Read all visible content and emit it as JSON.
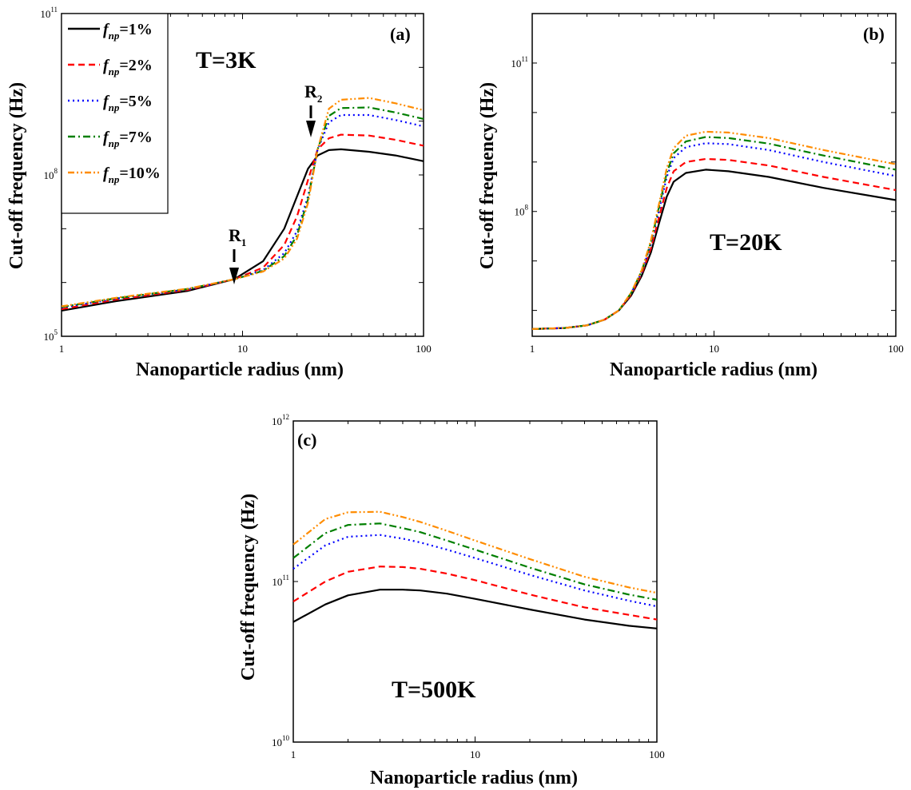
{
  "colors": {
    "fnp_1": "#000000",
    "fnp_2": "#ff0000",
    "fnp_5": "#0000ff",
    "fnp_7": "#007f00",
    "fnp_10": "#ff8c00"
  },
  "legend": {
    "entries": [
      {
        "italic": "f",
        "sub": "np",
        "text": "=1%"
      },
      {
        "italic": "f",
        "sub": "np",
        "text": "=2%"
      },
      {
        "italic": "f",
        "sub": "np",
        "text": "=5%"
      },
      {
        "italic": "f",
        "sub": "np",
        "text": "=7%"
      },
      {
        "italic": "f",
        "sub": "np",
        "text": "=10%"
      }
    ]
  },
  "chart_data": [
    {
      "type": "line",
      "panel": "(a)",
      "annotation": "T=3K",
      "xlabel": "Nanoparticle radius (nm)",
      "ylabel": "Cut-off frequency (Hz)",
      "x_scale": "log",
      "y_scale": "log",
      "xlim": [
        1,
        100
      ],
      "ylim": [
        100000,
        100000000000
      ],
      "x_ticks": [
        {
          "value": 1,
          "label": "1"
        },
        {
          "value": 10,
          "label": "10"
        },
        {
          "value": 100,
          "label": "100"
        }
      ],
      "y_ticks": [
        {
          "value": 100000,
          "base": "10",
          "exp": "5"
        },
        {
          "value": 100000000,
          "base": "10",
          "exp": "8"
        },
        {
          "value": 100000000000,
          "base": "10",
          "exp": "11"
        }
      ],
      "markers": [
        {
          "label": "R",
          "sub": "1",
          "x": 9.2,
          "y": 1200000
        },
        {
          "label": "R",
          "sub": "2",
          "x": 25,
          "y": 700000000
        }
      ],
      "legend_position": "top-left",
      "series": [
        {
          "key": "fnp_1",
          "x": [
            1,
            2,
            5,
            9,
            13,
            17,
            20,
            23,
            26,
            30,
            35,
            50,
            70,
            100
          ],
          "y": [
            300000,
            450000,
            700000,
            1150000,
            2500000,
            10000000,
            40000000,
            130000000,
            230000000,
            290000000,
            300000000,
            270000000,
            230000000,
            180000000
          ]
        },
        {
          "key": "fnp_2",
          "x": [
            1,
            2,
            5,
            9,
            13,
            17,
            20,
            23,
            26,
            30,
            35,
            50,
            70,
            100
          ],
          "y": [
            320000,
            480000,
            730000,
            1150000,
            1900000,
            5000000,
            17000000,
            80000000,
            300000000,
            480000000,
            560000000,
            540000000,
            450000000,
            350000000
          ]
        },
        {
          "key": "fnp_5",
          "x": [
            1,
            2,
            5,
            9,
            13,
            17,
            20,
            23,
            26,
            30,
            35,
            50,
            70,
            100
          ],
          "y": [
            340000,
            500000,
            750000,
            1150000,
            1700000,
            3500000,
            9000000,
            40000000,
            300000000,
            950000000,
            1300000000,
            1300000000,
            1050000000,
            800000000
          ]
        },
        {
          "key": "fnp_7",
          "x": [
            1,
            2,
            5,
            9,
            13,
            17,
            20,
            23,
            26,
            30,
            35,
            50,
            70,
            100
          ],
          "y": [
            350000,
            510000,
            760000,
            1150000,
            1650000,
            3100000,
            7500000,
            35000000,
            300000000,
            1250000000,
            1750000000,
            1800000000,
            1450000000,
            1100000000
          ]
        },
        {
          "key": "fnp_10",
          "x": [
            1,
            2,
            5,
            9,
            13,
            17,
            20,
            23,
            26,
            30,
            35,
            50,
            70,
            100
          ],
          "y": [
            360000,
            520000,
            770000,
            1150000,
            1600000,
            2800000,
            6500000,
            30000000,
            300000000,
            1700000000,
            2500000000,
            2700000000,
            2150000000,
            1600000000
          ]
        }
      ]
    },
    {
      "type": "line",
      "panel": "(b)",
      "annotation": "T=20K",
      "xlabel": "Nanoparticle radius (nm)",
      "ylabel": "Cut-off frequency (Hz)",
      "x_scale": "log",
      "y_scale": "log",
      "xlim": [
        1,
        100
      ],
      "ylim": [
        300000,
        1000000000000
      ],
      "x_ticks": [
        {
          "value": 1,
          "label": "1"
        },
        {
          "value": 10,
          "label": "10"
        },
        {
          "value": 100,
          "label": "100"
        }
      ],
      "y_ticks": [
        {
          "value": 100000000,
          "base": "10",
          "exp": "8"
        },
        {
          "value": 100000000000,
          "base": "10",
          "exp": "11"
        }
      ],
      "series": [
        {
          "key": "fnp_1",
          "x": [
            1,
            1.5,
            2,
            2.5,
            3,
            3.5,
            4,
            4.5,
            5,
            5.5,
            6,
            7,
            9,
            12,
            20,
            40,
            100
          ],
          "y": [
            420000,
            440000,
            500000,
            650000,
            1000000,
            2000000,
            5000000,
            15000000,
            60000000,
            200000000,
            400000000,
            600000000,
            700000000,
            650000000,
            500000000,
            300000000,
            170000000
          ]
        },
        {
          "key": "fnp_2",
          "x": [
            1,
            1.5,
            2,
            2.5,
            3,
            3.5,
            4,
            4.5,
            5,
            5.5,
            6,
            7,
            9,
            12,
            20,
            40,
            100
          ],
          "y": [
            420000,
            440000,
            500000,
            650000,
            1000000,
            2100000,
            5500000,
            18000000,
            80000000,
            300000000,
            650000000,
            1000000000,
            1150000000,
            1100000000,
            850000000,
            500000000,
            270000000
          ]
        },
        {
          "key": "fnp_5",
          "x": [
            1,
            1.5,
            2,
            2.5,
            3,
            3.5,
            4,
            4.5,
            5,
            5.5,
            6,
            7,
            9,
            12,
            20,
            40,
            100
          ],
          "y": [
            420000,
            440000,
            500000,
            650000,
            1000000,
            2200000,
            6000000,
            22000000,
            110000000,
            500000000,
            1200000000,
            2000000000,
            2400000000,
            2300000000,
            1750000000,
            1000000000,
            520000000
          ]
        },
        {
          "key": "fnp_7",
          "x": [
            1,
            1.5,
            2,
            2.5,
            3,
            3.5,
            4,
            4.5,
            5,
            5.5,
            6,
            7,
            9,
            12,
            20,
            40,
            100
          ],
          "y": [
            420000,
            440000,
            500000,
            650000,
            1000000,
            2250000,
            6200000,
            24000000,
            130000000,
            600000000,
            1500000000,
            2600000000,
            3200000000,
            3050000000,
            2350000000,
            1350000000,
            700000000
          ]
        },
        {
          "key": "fnp_10",
          "x": [
            1,
            1.5,
            2,
            2.5,
            3,
            3.5,
            4,
            4.5,
            5,
            5.5,
            6,
            7,
            9,
            12,
            20,
            40,
            100
          ],
          "y": [
            420000,
            440000,
            500000,
            650000,
            1000000,
            2300000,
            6500000,
            26000000,
            150000000,
            750000000,
            1900000000,
            3400000000,
            4100000000,
            3950000000,
            3050000000,
            1750000000,
            900000000
          ]
        }
      ]
    },
    {
      "type": "line",
      "panel": "(c)",
      "annotation": "T=500K",
      "xlabel": "Nanoparticle radius (nm)",
      "ylabel": "Cut-off frequency (Hz)",
      "x_scale": "log",
      "y_scale": "log",
      "xlim": [
        1,
        100
      ],
      "ylim": [
        10000000000,
        1000000000000
      ],
      "x_ticks": [
        {
          "value": 1,
          "label": "1"
        },
        {
          "value": 10,
          "label": "10"
        },
        {
          "value": 100,
          "label": "100"
        }
      ],
      "y_ticks": [
        {
          "value": 10000000000,
          "base": "10",
          "exp": "10"
        },
        {
          "value": 100000000000,
          "base": "10",
          "exp": "11"
        },
        {
          "value": 1000000000000,
          "base": "10",
          "exp": "12"
        }
      ],
      "series": [
        {
          "key": "fnp_1",
          "x": [
            1,
            1.5,
            2,
            3,
            4,
            5,
            7,
            10,
            20,
            40,
            70,
            100
          ],
          "y": [
            56000000000,
            72000000000,
            82000000000,
            89000000000,
            89000000000,
            88000000000,
            84000000000,
            78000000000,
            67000000000,
            58000000000,
            53000000000,
            51000000000
          ]
        },
        {
          "key": "fnp_2",
          "x": [
            1,
            1.5,
            2,
            3,
            4,
            5,
            7,
            10,
            20,
            40,
            70,
            100
          ],
          "y": [
            75000000000,
            100000000000,
            115000000000,
            124000000000,
            123000000000,
            120000000000,
            112000000000,
            102000000000,
            83000000000,
            69000000000,
            62000000000,
            58000000000
          ]
        },
        {
          "key": "fnp_5",
          "x": [
            1,
            1.5,
            2,
            3,
            4,
            5,
            7,
            10,
            20,
            40,
            70,
            100
          ],
          "y": [
            120000000000,
            168000000000,
            190000000000,
            195000000000,
            185000000000,
            175000000000,
            158000000000,
            140000000000,
            110000000000,
            88000000000,
            76000000000,
            70000000000
          ]
        },
        {
          "key": "fnp_7",
          "x": [
            1,
            1.5,
            2,
            3,
            4,
            5,
            7,
            10,
            20,
            40,
            70,
            100
          ],
          "y": [
            140000000000,
            200000000000,
            225000000000,
            230000000000,
            215000000000,
            203000000000,
            180000000000,
            158000000000,
            122000000000,
            96000000000,
            83000000000,
            77000000000
          ]
        },
        {
          "key": "fnp_10",
          "x": [
            1,
            1.5,
            2,
            3,
            4,
            5,
            7,
            10,
            20,
            40,
            70,
            100
          ],
          "y": [
            170000000000,
            245000000000,
            270000000000,
            272000000000,
            252000000000,
            235000000000,
            207000000000,
            180000000000,
            138000000000,
            107000000000,
            92000000000,
            85000000000
          ]
        }
      ]
    }
  ]
}
